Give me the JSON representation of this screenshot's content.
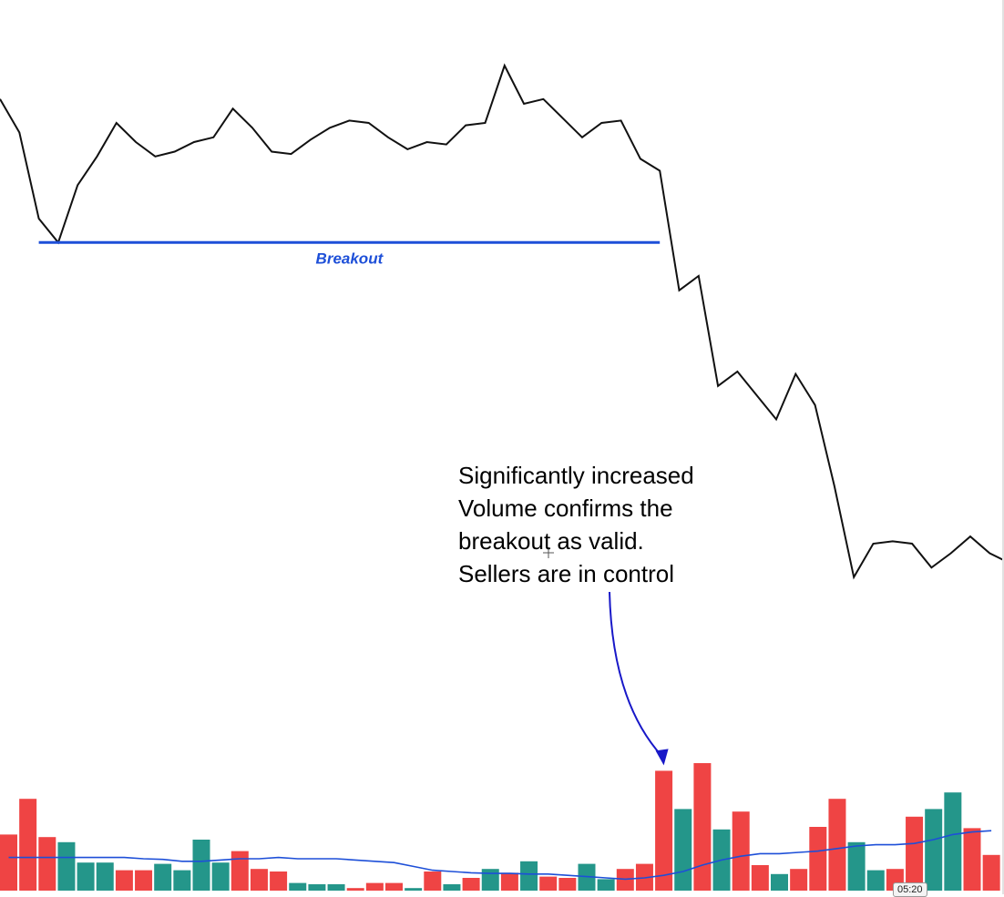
{
  "chart_data": [
    {
      "type": "line",
      "series": [
        {
          "values": [
            1.45,
            1.38,
            1.2,
            1.15,
            1.27,
            1.33,
            1.4,
            1.36,
            1.33,
            1.34,
            1.36,
            1.37,
            1.43,
            1.39,
            1.34,
            1.335,
            1.365,
            1.39,
            1.405,
            1.4,
            1.37,
            1.345,
            1.36,
            1.355,
            1.395,
            1.4,
            1.52,
            1.44,
            1.45,
            1.41,
            1.37,
            1.4,
            1.405,
            1.325,
            1.3,
            1.05,
            1.08,
            0.85,
            0.88,
            0.83,
            0.78,
            0.875,
            0.81,
            0.64,
            0.45,
            0.52,
            0.525,
            0.52,
            0.47,
            0.5,
            0.535,
            0.5,
            0.48,
            0.4
          ]
        }
      ],
      "ylim": [
        0.4,
        1.6
      ],
      "grid": false,
      "line_color": "#111111",
      "annotations": [
        {
          "text": "Breakout",
          "level": 1.15,
          "from_index": 2,
          "to_index": 34,
          "color": "#1d4fd8"
        }
      ]
    },
    {
      "type": "bar",
      "values": [
        0.44,
        0.72,
        0.42,
        0.38,
        0.22,
        0.22,
        0.16,
        0.16,
        0.21,
        0.16,
        0.4,
        0.22,
        0.31,
        0.17,
        0.15,
        0.06,
        0.05,
        0.05,
        0.02,
        0.06,
        0.06,
        0.02,
        0.15,
        0.05,
        0.1,
        0.17,
        0.14,
        0.23,
        0.11,
        0.1,
        0.21,
        0.09,
        0.17,
        0.21,
        0.94,
        0.64,
        1.0,
        0.48,
        0.62,
        0.2,
        0.13,
        0.17,
        0.5,
        0.72,
        0.38,
        0.16,
        0.17,
        0.58,
        0.64,
        0.77,
        0.49,
        0.28
      ],
      "bar_colors": [
        "#ef4444",
        "#ef4444",
        "#ef4444",
        "#24968a",
        "#24968a",
        "#24968a",
        "#ef4444",
        "#ef4444",
        "#24968a",
        "#24968a",
        "#24968a",
        "#24968a",
        "#ef4444",
        "#ef4444",
        "#ef4444",
        "#24968a",
        "#24968a",
        "#24968a",
        "#ef4444",
        "#ef4444",
        "#ef4444",
        "#24968a",
        "#ef4444",
        "#24968a",
        "#ef4444",
        "#24968a",
        "#ef4444",
        "#24968a",
        "#ef4444",
        "#ef4444",
        "#24968a",
        "#24968a",
        "#ef4444",
        "#ef4444",
        "#ef4444",
        "#24968a",
        "#ef4444",
        "#24968a",
        "#ef4444",
        "#ef4444",
        "#24968a",
        "#ef4444",
        "#ef4444",
        "#ef4444",
        "#24968a",
        "#24968a",
        "#ef4444",
        "#ef4444",
        "#24968a",
        "#24968a",
        "#ef4444",
        "#ef4444"
      ],
      "moving_average": [
        0.26,
        0.26,
        0.26,
        0.26,
        0.26,
        0.26,
        0.26,
        0.25,
        0.245,
        0.23,
        0.23,
        0.24,
        0.25,
        0.25,
        0.26,
        0.25,
        0.25,
        0.25,
        0.24,
        0.23,
        0.22,
        0.19,
        0.16,
        0.15,
        0.14,
        0.135,
        0.135,
        0.13,
        0.13,
        0.12,
        0.11,
        0.1,
        0.09,
        0.1,
        0.12,
        0.15,
        0.2,
        0.24,
        0.27,
        0.29,
        0.29,
        0.3,
        0.31,
        0.33,
        0.35,
        0.36,
        0.36,
        0.37,
        0.4,
        0.44,
        0.46,
        0.47
      ],
      "ma_color": "#1d4fd8",
      "ylim": [
        0,
        1.0
      ],
      "grid": false
    }
  ],
  "annotation": {
    "text": "Significantly increased\nVolume confirms the\nbreakout as valid.\nSellers are in control",
    "color": "#1818c8",
    "points_to_bar_index": 34
  },
  "time_badge": "05:20",
  "colors": {
    "bear": "#ef4444",
    "bull": "#24968a",
    "price_line": "#111111",
    "accent": "#1d4fd8",
    "background": "#ffffff"
  }
}
